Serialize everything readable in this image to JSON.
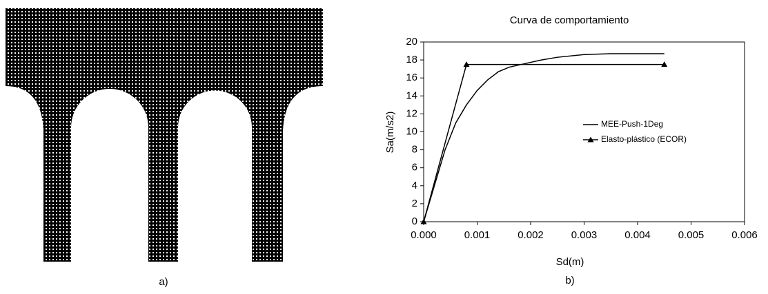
{
  "figure_a": {
    "caption": "a)"
  },
  "chart_data": {
    "type": "line",
    "title": "Curva de comportamiento",
    "x_label": "Sd(m)",
    "y_label": "Sa(m/s2)",
    "caption": "b)",
    "series": [
      {
        "name": "MEE-Push-1Deg",
        "color": "#000000",
        "marker": "none",
        "x": [
          0,
          0.0002,
          0.0004,
          0.0006,
          0.0008,
          0.001,
          0.0012,
          0.0014,
          0.0016,
          0.0019,
          0.0022,
          0.0025,
          0.003,
          0.0035,
          0.0045
        ],
        "values": [
          0,
          4,
          8,
          11,
          13,
          14.6,
          15.8,
          16.7,
          17.2,
          17.6,
          18,
          18.3,
          18.6,
          18.7,
          18.7
        ]
      },
      {
        "name": "Elasto-plástico (ECOR)",
        "color": "#000000",
        "marker": "triangle",
        "x": [
          0,
          0.0008,
          0.0045
        ],
        "values": [
          0,
          17.5,
          17.5
        ]
      }
    ],
    "xlim": [
      0,
      0.006
    ],
    "ylim": [
      0,
      20
    ],
    "xticks": [
      {
        "value": 0,
        "label": "0.000"
      },
      0.001,
      0.002,
      0.003,
      0.004,
      0.005,
      0.006
    ],
    "yticks": [
      0,
      2,
      4,
      6,
      8,
      10,
      12,
      14,
      16,
      18,
      20
    ],
    "grid": false,
    "legend": "right"
  }
}
